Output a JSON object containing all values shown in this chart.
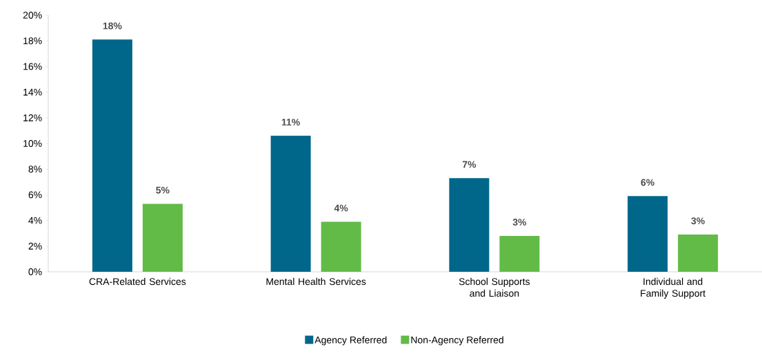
{
  "chart_data": {
    "type": "bar",
    "categories": [
      "CRA-Related Services",
      "Mental Health Services",
      "School Supports and Liaison",
      "Individual and Family Support"
    ],
    "series": [
      {
        "name": "Agency Referred",
        "color": "#00678a",
        "values": [
          18.1,
          10.6,
          7.3,
          5.9
        ],
        "value_labels": [
          "18%",
          "11%",
          "7%",
          "6%"
        ]
      },
      {
        "name": "Non-Agency Referred",
        "color": "#62bb46",
        "values": [
          5.3,
          3.9,
          2.8,
          2.9
        ],
        "value_labels": [
          "5%",
          "4%",
          "3%",
          "3%"
        ]
      }
    ],
    "ylim": [
      0,
      20
    ],
    "yticks": [
      {
        "value": 0,
        "label": "0%"
      },
      {
        "value": 2,
        "label": "2%"
      },
      {
        "value": 4,
        "label": "4%"
      },
      {
        "value": 6,
        "label": "6%"
      },
      {
        "value": 8,
        "label": "8%"
      },
      {
        "value": 10,
        "label": "10%"
      },
      {
        "value": 12,
        "label": "12%"
      },
      {
        "value": 14,
        "label": "14%"
      },
      {
        "value": 16,
        "label": "16%"
      },
      {
        "value": 18,
        "label": "18%"
      },
      {
        "value": 20,
        "label": "20%"
      }
    ],
    "grid": false,
    "legend": "bottom"
  }
}
